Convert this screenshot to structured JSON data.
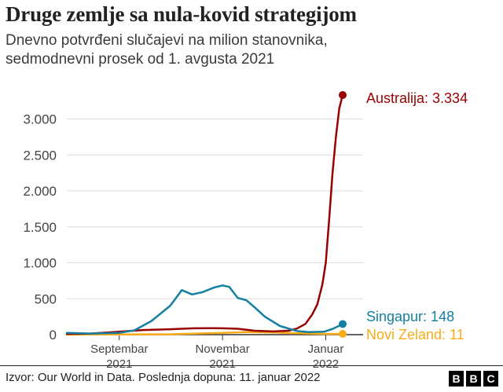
{
  "title": "Druge zemlje sa nula-kovid strategijom",
  "subtitle_lines": [
    "Dnevno potvrđeni slučajevi na milion stanovnika,",
    "sedmodnevni prosek od 1. avgusta 2021"
  ],
  "source": "Izvor: Our World in Data. Poslednja dopuna: 11. januar 2022",
  "logo_letters": [
    "B",
    "B",
    "C"
  ],
  "chart_data": {
    "type": "line",
    "title": "Druge zemlje sa nula-kovid strategijom",
    "subtitle": "Dnevno potvrđeni slučajevi na milion stanovnika, sedmodnevni prosek od 1. avgusta 2021",
    "xlabel": "",
    "ylabel": "",
    "x_range": [
      "2021-08-01",
      "2022-01-11"
    ],
    "ylim": [
      0,
      3334
    ],
    "yticks": [
      0,
      500,
      1000,
      1500,
      2000,
      2500,
      3000
    ],
    "ytick_labels": [
      "0",
      "500",
      "1.000",
      "1.500",
      "2.000",
      "2.500",
      "3.000"
    ],
    "xticks": [
      {
        "date": "2021-09-01",
        "label_lines": [
          "Septembar",
          "2021"
        ]
      },
      {
        "date": "2021-11-01",
        "label_lines": [
          "Novembar",
          "2021"
        ]
      },
      {
        "date": "2022-01-01",
        "label_lines": [
          "Januar",
          "2022"
        ]
      }
    ],
    "grid": "horizontal",
    "series": [
      {
        "name": "Australija",
        "end_label": "Australija: 3.334",
        "color": "#990000",
        "points": [
          [
            "2021-08-01",
            10
          ],
          [
            "2021-08-15",
            15
          ],
          [
            "2021-09-01",
            40
          ],
          [
            "2021-09-15",
            65
          ],
          [
            "2021-10-01",
            75
          ],
          [
            "2021-10-15",
            88
          ],
          [
            "2021-10-25",
            90
          ],
          [
            "2021-11-01",
            88
          ],
          [
            "2021-11-10",
            82
          ],
          [
            "2021-11-20",
            55
          ],
          [
            "2021-12-01",
            45
          ],
          [
            "2021-12-10",
            55
          ],
          [
            "2021-12-15",
            85
          ],
          [
            "2021-12-20",
            150
          ],
          [
            "2021-12-24",
            280
          ],
          [
            "2021-12-27",
            420
          ],
          [
            "2021-12-30",
            700
          ],
          [
            "2022-01-01",
            1000
          ],
          [
            "2022-01-03",
            1600
          ],
          [
            "2022-01-05",
            2250
          ],
          [
            "2022-01-07",
            2750
          ],
          [
            "2022-01-09",
            3150
          ],
          [
            "2022-01-11",
            3334
          ]
        ]
      },
      {
        "name": "Singapur",
        "end_label": "Singapur: 148",
        "color": "#1380A1",
        "points": [
          [
            "2021-08-01",
            25
          ],
          [
            "2021-08-15",
            15
          ],
          [
            "2021-09-01",
            25
          ],
          [
            "2021-09-10",
            60
          ],
          [
            "2021-09-20",
            190
          ],
          [
            "2021-10-01",
            400
          ],
          [
            "2021-10-08",
            620
          ],
          [
            "2021-10-14",
            560
          ],
          [
            "2021-10-20",
            590
          ],
          [
            "2021-10-27",
            655
          ],
          [
            "2021-11-01",
            685
          ],
          [
            "2021-11-05",
            665
          ],
          [
            "2021-11-10",
            510
          ],
          [
            "2021-11-15",
            480
          ],
          [
            "2021-11-20",
            380
          ],
          [
            "2021-11-26",
            250
          ],
          [
            "2021-12-05",
            120
          ],
          [
            "2021-12-15",
            50
          ],
          [
            "2021-12-22",
            35
          ],
          [
            "2021-12-31",
            40
          ],
          [
            "2022-01-05",
            80
          ],
          [
            "2022-01-11",
            148
          ]
        ]
      },
      {
        "name": "Novi Zeland",
        "end_label": "Novi Zeland: 11",
        "color": "#FAAB18",
        "points": [
          [
            "2021-08-01",
            0
          ],
          [
            "2021-09-01",
            3
          ],
          [
            "2021-10-01",
            5
          ],
          [
            "2021-11-01",
            25
          ],
          [
            "2021-11-15",
            35
          ],
          [
            "2021-12-01",
            30
          ],
          [
            "2021-12-15",
            20
          ],
          [
            "2022-01-01",
            10
          ],
          [
            "2022-01-11",
            11
          ]
        ]
      }
    ]
  }
}
